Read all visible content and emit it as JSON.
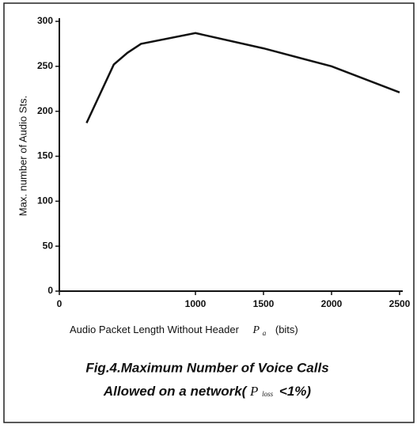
{
  "chart_data": {
    "type": "line",
    "ylabel": "Max. number of Audio Sts.",
    "xlabel": "Audio Packet Length Without Header",
    "xlabel_symbol": "P",
    "xlabel_sub": "a",
    "xlabel_unit": "(bits)",
    "caption_line1": "Fig.4.Maximum Number of Voice Calls",
    "caption_line2": "Allowed on a network(",
    "caption_symbol": "P",
    "caption_sub": "loss",
    "caption_end": "<1%)",
    "x": [
      200,
      400,
      500,
      600,
      1000,
      1500,
      2000,
      2500
    ],
    "values": [
      187,
      252,
      265,
      275,
      287,
      270,
      250,
      221
    ],
    "color": "#111111",
    "xlim": [
      0,
      2500
    ],
    "xticks": [
      0,
      1000,
      1500,
      2000,
      2500
    ],
    "ylim": [
      0,
      300
    ],
    "yticks": [
      0,
      50,
      100,
      150,
      200,
      250,
      300
    ]
  }
}
